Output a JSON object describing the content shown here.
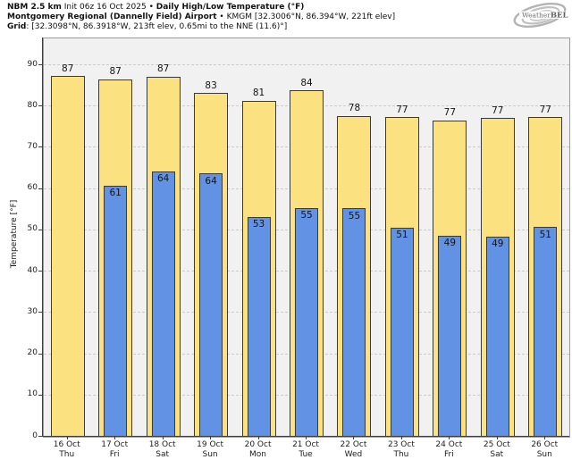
{
  "header": {
    "line1_bold1": "NBM 2.5 km",
    "line1_regular": " Init 06z 16 Oct 2025 • ",
    "line1_bold2": "Daily High/Low Temperature (°F)",
    "line2_bold": "Montgomery Regional (Dannelly Field) Airport",
    "line2_regular": " • KMGM [32.3006°N, 86.394°W, 221ft elev]",
    "line3_bold": "Grid",
    "line3_regular": ": [32.3098°N, 86.3918°W, 213ft elev, 0.65mi to the NNE (11.6)°]"
  },
  "logo": {
    "text_weather": "Weather",
    "text_bell": "BELL"
  },
  "chart_data": {
    "type": "bar",
    "title": "Daily High/Low Temperature (°F)",
    "xlabel": "",
    "ylabel": "Temperature [°F]",
    "ylim": [
      0,
      96.5
    ],
    "yticks": [
      0,
      10,
      20,
      30,
      40,
      50,
      60,
      70,
      80,
      90
    ],
    "grid": {
      "axis": "y",
      "style": "dashed",
      "color": "#cdcdcd"
    },
    "legend_position": "none",
    "plot_background": "#f1f1f1",
    "categories": [
      "16 Oct",
      "17 Oct",
      "18 Oct",
      "19 Oct",
      "20 Oct",
      "21 Oct",
      "22 Oct",
      "23 Oct",
      "24 Oct",
      "25 Oct",
      "26 Oct"
    ],
    "category_days": [
      "Thu",
      "Fri",
      "Sat",
      "Sun",
      "Mon",
      "Tue",
      "Wed",
      "Thu",
      "Fri",
      "Sat",
      "Sun"
    ],
    "series": [
      {
        "name": "Daily High",
        "color": "#fbe180",
        "border_color": "#3a3a3a",
        "labels": [
          87,
          87,
          87,
          83,
          81,
          84,
          78,
          77,
          77,
          77,
          77
        ],
        "bar_values": [
          87.4,
          86.6,
          87.2,
          83.2,
          81.4,
          83.9,
          77.7,
          77.4,
          76.7,
          77.2,
          77.4
        ]
      },
      {
        "name": "Daily Low",
        "color": "#6292e4",
        "border_color": "#3a3a3a",
        "labels": [
          null,
          61,
          64,
          64,
          53,
          55,
          55,
          51,
          49,
          49,
          51
        ],
        "bar_values": [
          null,
          60.8,
          64.3,
          63.8,
          53.3,
          55.5,
          55.3,
          50.7,
          48.7,
          48.5,
          50.8
        ]
      }
    ]
  }
}
